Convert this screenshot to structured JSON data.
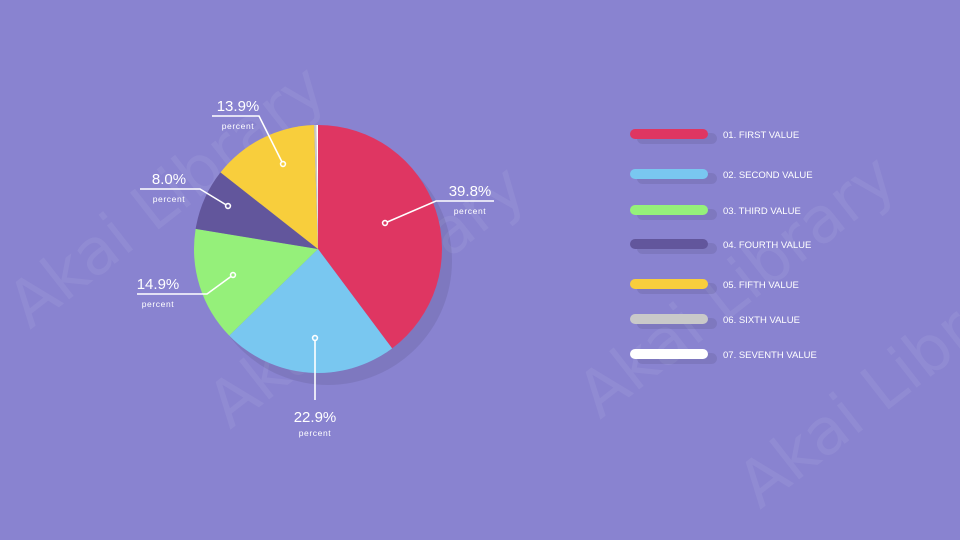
{
  "watermark": {
    "text": "Akai Library"
  },
  "chart_data": {
    "type": "pie",
    "categories": [
      "01. FIRST VALUE",
      "02. SECOND VALUE",
      "03. THIRD VALUE",
      "04. FOURTH VALUE",
      "05. FIFTH VALUE",
      "06. SIXTH VALUE",
      "07. SEVENTH VALUE"
    ],
    "values": [
      39.8,
      22.9,
      14.9,
      8.0,
      13.9,
      0.3,
      0.2
    ],
    "colors": [
      "#df3662",
      "#79c7f0",
      "#95f07a",
      "#62569c",
      "#f8ce3c",
      "#c9c9c9",
      "#ffffff"
    ],
    "legend_position": "right",
    "data_labels": [
      {
        "value": "39.8%",
        "unit": "percent"
      },
      {
        "value": "22.9%",
        "unit": "percent"
      },
      {
        "value": "14.9%",
        "unit": "percent"
      },
      {
        "value": "8.0%",
        "unit": "percent"
      },
      {
        "value": "13.9%",
        "unit": "percent"
      }
    ]
  }
}
